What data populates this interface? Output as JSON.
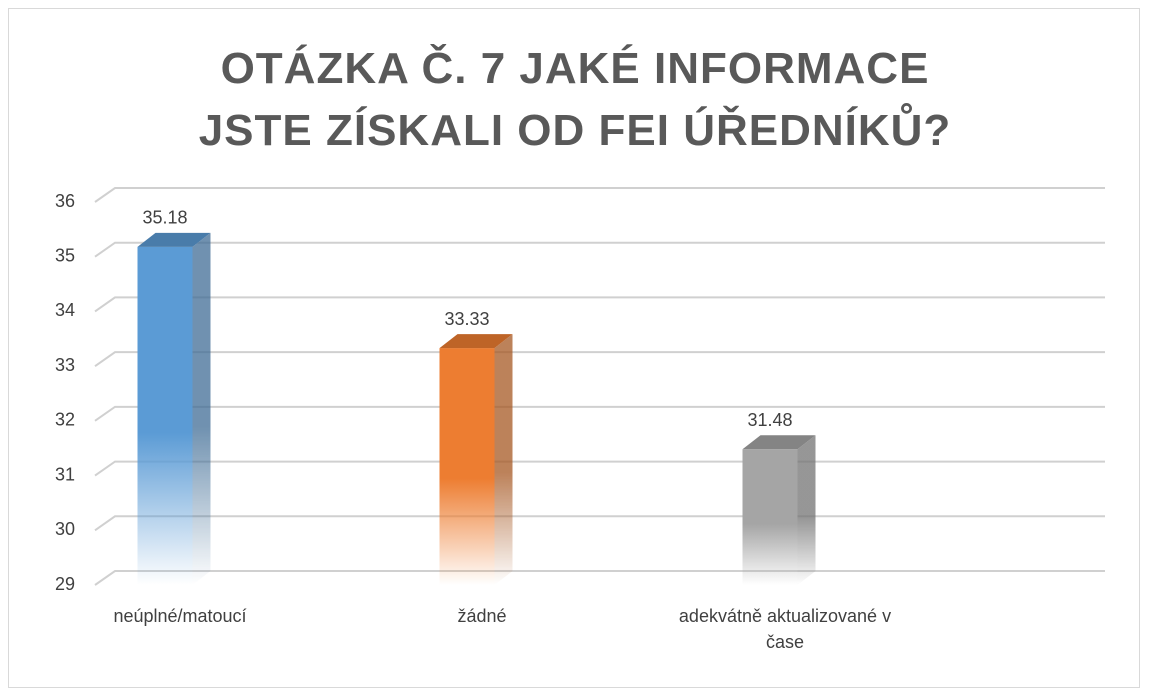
{
  "chart_data": {
    "type": "bar3d",
    "title": "OTÁZKA Č. 7 JAKÉ INFORMACE JSTE ZÍSKALI OD FEI ÚŘEDNÍKŮ?",
    "categories": [
      "neúplné/matoucí",
      "žádné",
      "adekvátně aktualizované v čase"
    ],
    "values": [
      35.18,
      33.33,
      31.48
    ],
    "colors": [
      "#5b9bd5",
      "#ed7d31",
      "#a5a5a5"
    ],
    "ylim": [
      29,
      36
    ],
    "yticks": [
      29,
      30,
      31,
      32,
      33,
      34,
      35,
      36
    ],
    "grid": true
  }
}
